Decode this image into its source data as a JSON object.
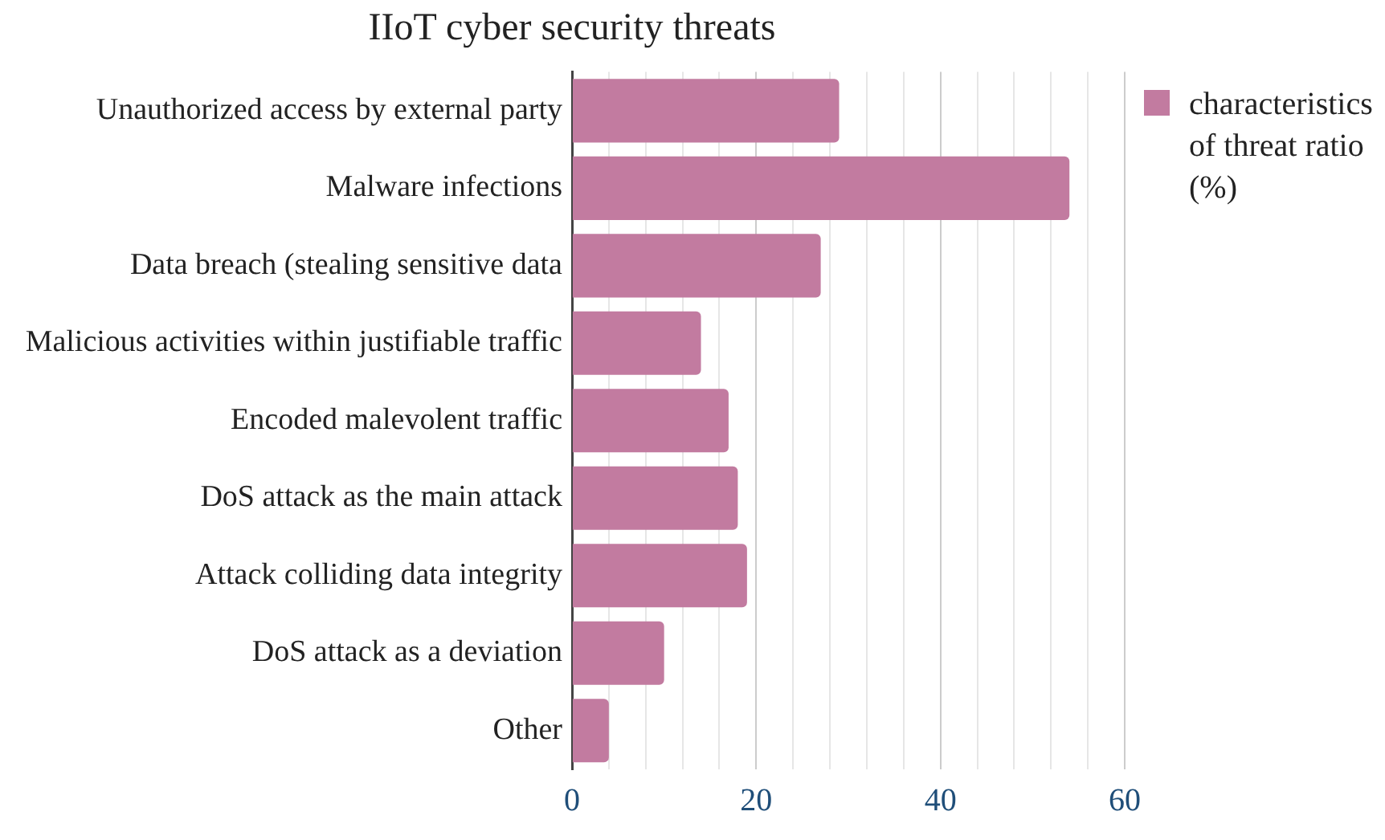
{
  "chart_data": {
    "type": "bar",
    "orientation": "horizontal",
    "title": "IIoT cyber security threats",
    "categories": [
      "Unauthorized access by external party",
      "Malware infections",
      "Data breach (stealing sensitive data",
      "Malicious activities within justifiable traffic",
      "Encoded malevolent traffic",
      "DoS attack as the main attack",
      "Attack colliding data integrity",
      "DoS attack as a deviation",
      "Other"
    ],
    "series": [
      {
        "name": "characteristics of threat ratio (%)",
        "color": "#c27ba0",
        "values": [
          29,
          54,
          27,
          14,
          17,
          18,
          19,
          10,
          4
        ]
      }
    ],
    "xlim": [
      0,
      60
    ],
    "xticks": [
      0,
      {
        "value": 4,
        "label": null
      },
      {
        "value": 8,
        "label": null
      },
      {
        "value": 12,
        "label": null
      },
      {
        "value": 16,
        "label": null
      },
      20,
      {
        "value": 24,
        "label": null
      },
      {
        "value": 28,
        "label": null
      },
      {
        "value": 32,
        "label": null
      },
      {
        "value": 36,
        "label": null
      },
      40,
      {
        "value": 44,
        "label": null
      },
      {
        "value": 48,
        "label": null
      },
      {
        "value": 52,
        "label": null
      },
      {
        "value": 56,
        "label": null
      },
      60
    ],
    "grid": "x",
    "legend": "top right"
  }
}
